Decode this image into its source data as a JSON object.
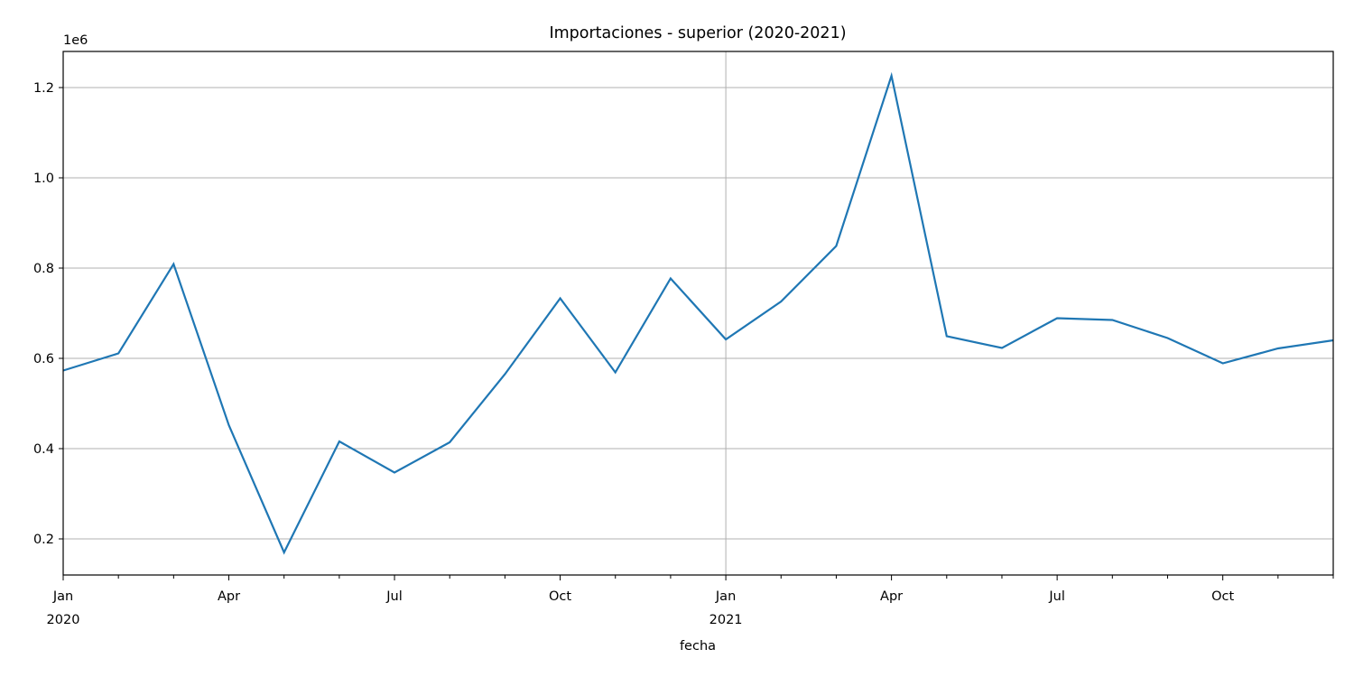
{
  "chart_data": {
    "type": "line",
    "title": "Importaciones - superior (2020-2021)",
    "xlabel": "fecha",
    "ylabel": "",
    "y_offset_label": "1e6",
    "ylim": [
      0.12,
      1.28
    ],
    "grid": true,
    "x": [
      "2020-01",
      "2020-02",
      "2020-03",
      "2020-04",
      "2020-05",
      "2020-06",
      "2020-07",
      "2020-08",
      "2020-09",
      "2020-10",
      "2020-11",
      "2020-12",
      "2021-01",
      "2021-02",
      "2021-03",
      "2021-04",
      "2021-05",
      "2021-06",
      "2021-07",
      "2021-08",
      "2021-09",
      "2021-10",
      "2021-11",
      "2021-12"
    ],
    "series": [
      {
        "color": "#1f77b4",
        "values": [
          0.573,
          0.611,
          0.809,
          0.452,
          0.17,
          0.416,
          0.347,
          0.414,
          0.565,
          0.733,
          0.569,
          0.777,
          0.642,
          0.726,
          0.849,
          1.226,
          0.649,
          0.623,
          0.689,
          0.685,
          0.645,
          0.589,
          0.622,
          0.64
        ]
      }
    ],
    "y_ticks": [
      "0.2",
      "0.4",
      "0.6",
      "0.8",
      "1.0",
      "1.2"
    ],
    "x_major_ticks": [
      {
        "label": "Jan",
        "sublabel": "2020"
      },
      {
        "label": "Apr",
        "sublabel": ""
      },
      {
        "label": "Jul",
        "sublabel": ""
      },
      {
        "label": "Oct",
        "sublabel": ""
      },
      {
        "label": "Jan",
        "sublabel": "2021"
      },
      {
        "label": "Apr",
        "sublabel": ""
      },
      {
        "label": "Jul",
        "sublabel": ""
      },
      {
        "label": "Oct",
        "sublabel": ""
      }
    ]
  }
}
